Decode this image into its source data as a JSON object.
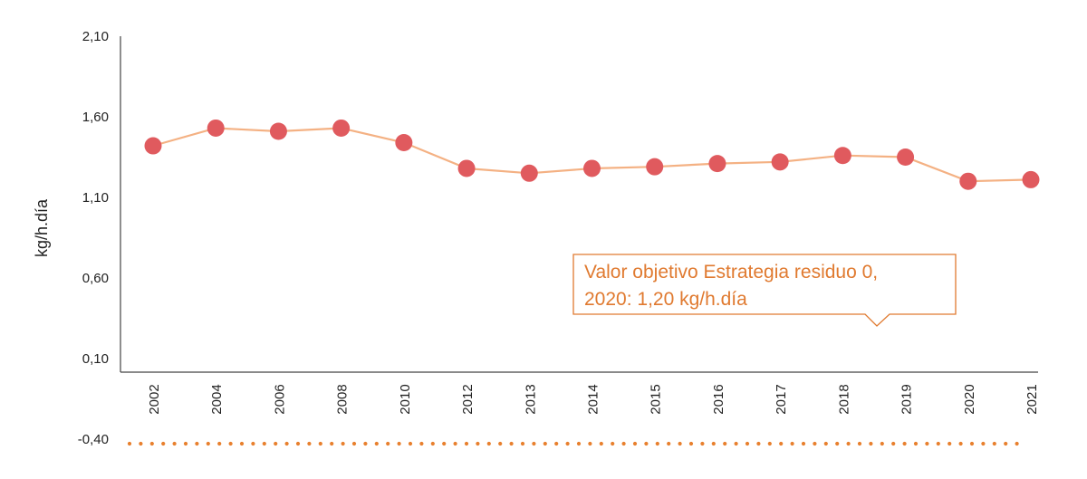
{
  "chart_data": {
    "type": "line",
    "ylabel": "kg/h.día",
    "ylim": [
      -0.4,
      2.1
    ],
    "yticks": [
      "2,10",
      "1,60",
      "1,10",
      "0,60",
      "0,10",
      "-0,40"
    ],
    "ytick_values": [
      2.1,
      1.6,
      1.1,
      0.6,
      0.1,
      -0.4
    ],
    "categories": [
      "2002",
      "2004",
      "2006",
      "2008",
      "2010",
      "2012",
      "2013",
      "2014",
      "2015",
      "2016",
      "2017",
      "2018",
      "2019",
      "2020",
      "2021"
    ],
    "series": [
      {
        "values": [
          1.42,
          1.53,
          1.51,
          1.53,
          1.44,
          1.28,
          1.25,
          1.28,
          1.29,
          1.31,
          1.32,
          1.36,
          1.35,
          1.2,
          1.21
        ]
      }
    ],
    "annotation": {
      "line1": "Valor objetivo Estrategia residuo 0,",
      "line2": "2020: 1,20 kg/h.día"
    },
    "colors": {
      "line": "#f4b183",
      "marker": "#e05a5e",
      "annotation": "#e07a30",
      "axis": "#444444",
      "dotted_line": "#e8802e"
    }
  }
}
